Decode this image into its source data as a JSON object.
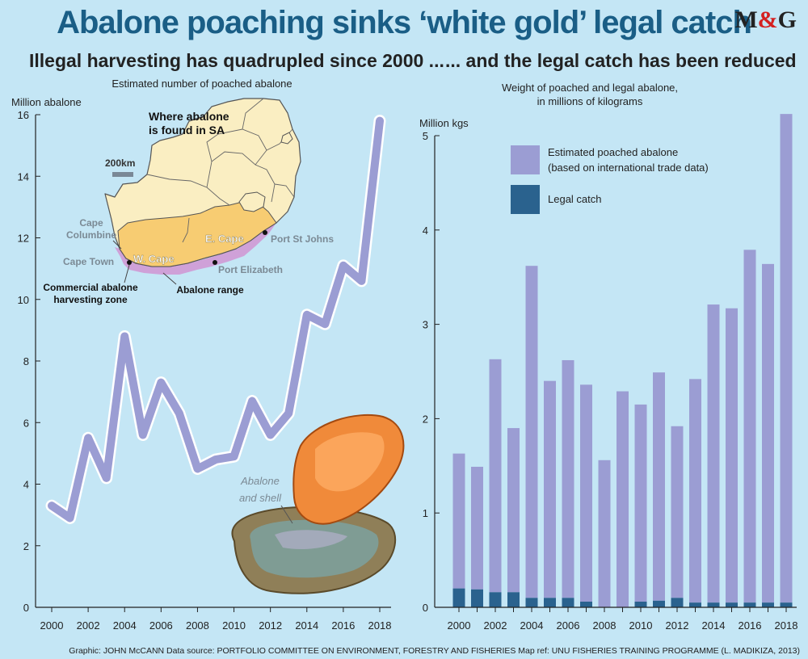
{
  "header": {
    "title": "Abalone poaching sinks ‘white gold’ legal catch",
    "logo_m": "M",
    "logo_and": "&",
    "logo_g": "G"
  },
  "left_panel": {
    "subtitle": "Illegal harvesting has quadrupled since 2000 ...",
    "caption": "Estimated number of poached abalone"
  },
  "right_panel": {
    "subtitle": "... and the legal catch has been reduced",
    "caption_line1": "Weight of poached and legal abalone,",
    "caption_line2": "in millions of kilograms"
  },
  "map": {
    "title_line1": "Where abalone",
    "title_line2": "is found in SA",
    "scale_label": "200km",
    "labels": {
      "cape_columbine_1": "Cape",
      "cape_columbine_2": "Columbine",
      "cape_town": "Cape Town",
      "w_cape": "W. Cape",
      "e_cape": "E. Cape",
      "port_st_johns": "Port St Johns",
      "port_elizabeth": "Port Elizabeth",
      "commercial_1": "Commercial abalone",
      "commercial_2": "harvesting zone",
      "abalone_range": "Abalone range"
    },
    "colors": {
      "land": "#faeec2",
      "coast_province": "#f7cc72",
      "range": "#cfa1d8",
      "border": "#666666"
    }
  },
  "illustration": {
    "label_line1": "Abalone",
    "label_line2": "and shell"
  },
  "footer": {
    "credit": "Graphic: JOHN McCANN  Data source: PORTFOLIO COMMITTEE ON ENVIRONMENT, FORESTRY AND FISHERIES  Map ref: UNU FISHERIES TRAINING PROGRAMME (L. MADIKIZA, 2013)"
  },
  "chart_data": [
    {
      "type": "line",
      "title": "Illegal harvesting has quadrupled since 2000 ...",
      "subtitle": "Estimated number of poached abalone",
      "ylabel": "Million abalone",
      "xlabel": "",
      "x": [
        2000,
        2001,
        2002,
        2003,
        2004,
        2005,
        2006,
        2007,
        2008,
        2009,
        2010,
        2011,
        2012,
        2013,
        2014,
        2015,
        2016,
        2017,
        2018
      ],
      "values": [
        3.3,
        2.9,
        5.5,
        4.2,
        8.8,
        5.6,
        7.3,
        6.3,
        4.5,
        4.8,
        4.9,
        6.7,
        5.6,
        6.3,
        9.5,
        9.2,
        11.1,
        10.6,
        15.8
      ],
      "xticks": [
        "2000",
        "2002",
        "2004",
        "2006",
        "2008",
        "2010",
        "2012",
        "2014",
        "2016",
        "2018"
      ],
      "yticks": [
        "0",
        "2",
        "4",
        "6",
        "8",
        "10",
        "12",
        "14",
        "16"
      ],
      "ylim": [
        0,
        16
      ],
      "xlim": [
        2000,
        2018
      ],
      "colors": {
        "line": "#9b9dd3",
        "line_edge": "#ffffff",
        "axis": "#222222"
      }
    },
    {
      "type": "bar",
      "stacked": true,
      "title": "... and the legal catch has been reduced",
      "subtitle": "Weight of poached and legal abalone, in millions of kilograms",
      "ylabel": "Million kgs",
      "xlabel": "",
      "categories": [
        "2000",
        "2001",
        "2002",
        "2003",
        "2004",
        "2005",
        "2006",
        "2007",
        "2008",
        "2009",
        "2010",
        "2011",
        "2012",
        "2013",
        "2014",
        "2015",
        "2016",
        "2017",
        "2018"
      ],
      "series": [
        {
          "name": "Legal catch",
          "color": "#2a628e",
          "values": [
            0.2,
            0.19,
            0.16,
            0.16,
            0.1,
            0.1,
            0.1,
            0.06,
            0.0,
            0.0,
            0.06,
            0.07,
            0.1,
            0.05,
            0.05,
            0.05,
            0.05,
            0.05,
            0.05
          ]
        },
        {
          "name": "Estimated poached abalone",
          "color": "#9b9dd3",
          "values": [
            1.43,
            1.3,
            2.47,
            1.74,
            3.52,
            2.3,
            2.52,
            2.3,
            1.56,
            2.29,
            2.09,
            2.42,
            1.82,
            2.37,
            3.16,
            3.12,
            3.74,
            3.59,
            5.18
          ]
        }
      ],
      "legend": [
        {
          "label_line1": "Estimated poached abalone",
          "label_line2": "(based on international trade data)",
          "color": "#9b9dd3"
        },
        {
          "label_line1": "Legal catch",
          "label_line2": "",
          "color": "#2a628e"
        }
      ],
      "xticks": [
        "2000",
        "2002",
        "2004",
        "2006",
        "2008",
        "2010",
        "2012",
        "2014",
        "2016",
        "2018"
      ],
      "yticks": [
        "0",
        "1",
        "2",
        "3",
        "4",
        "5"
      ],
      "ylim": [
        0,
        5.2
      ]
    }
  ]
}
